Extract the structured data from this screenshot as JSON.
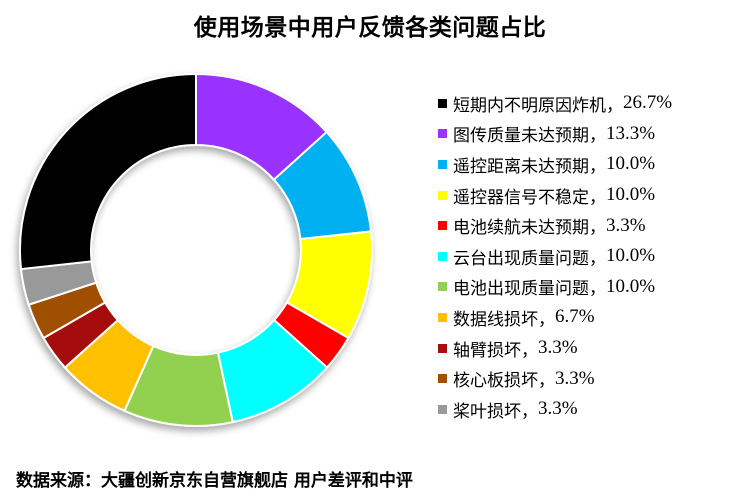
{
  "chart_data": {
    "type": "pie",
    "variant": "donut",
    "title": "使用场景中用户反馈各类问题占比",
    "start_angle": "12 o'clock, clockwise",
    "legend_position": "right",
    "slices": [
      {
        "label": "图传质量未达预期",
        "value": 13.3,
        "display": "13.3%",
        "color": "#9933FF"
      },
      {
        "label": "遥控距离未达预期",
        "value": 10.0,
        "display": "10.0%",
        "color": "#00B0F0"
      },
      {
        "label": "遥控器信号不稳定",
        "value": 10.0,
        "display": "10.0%",
        "color": "#FFFF00"
      },
      {
        "label": "电池续航未达预期",
        "value": 3.3,
        "display": "3.3%",
        "color": "#FF0000"
      },
      {
        "label": "云台出现质量问题",
        "value": 10.0,
        "display": "10.0%",
        "color": "#00FFFF"
      },
      {
        "label": "电池出现质量问题",
        "value": 10.0,
        "display": "10.0%",
        "color": "#92D050"
      },
      {
        "label": "数据线损坏",
        "value": 6.7,
        "display": "6.7%",
        "color": "#FFC000"
      },
      {
        "label": "轴臂损坏",
        "value": 3.3,
        "display": "3.3%",
        "color": "#A50F0F"
      },
      {
        "label": "核心板损坏",
        "value": 3.3,
        "display": "3.3%",
        "color": "#A05000"
      },
      {
        "label": "桨叶损坏",
        "value": 3.3,
        "display": "3.3%",
        "color": "#999999"
      },
      {
        "label": "短期内不明原因炸机",
        "value": 26.7,
        "display": "26.7%",
        "color": "#000000"
      }
    ]
  },
  "title": "使用场景中用户反馈各类问题占比",
  "legend": [
    {
      "label": "短期内不明原因炸机",
      "sep": "，",
      "value": "26.7%",
      "color": "#000000"
    },
    {
      "label": "图传质量未达预期",
      "sep": "，",
      "value": "13.3%",
      "color": "#9933FF"
    },
    {
      "label": "遥控距离未达预期",
      "sep": "，",
      "value": "10.0%",
      "color": "#00B0F0"
    },
    {
      "label": "遥控器信号不稳定",
      "sep": "，",
      "value": "10.0%",
      "color": "#FFFF00"
    },
    {
      "label": "电池续航未达预期",
      "sep": "，",
      "value": "3.3%",
      "color": "#FF0000"
    },
    {
      "label": "云台出现质量问题",
      "sep": "，",
      "value": "10.0%",
      "color": "#00FFFF"
    },
    {
      "label": "电池出现质量问题",
      "sep": "，",
      "value": "10.0%",
      "color": "#92D050"
    },
    {
      "label": "数据线损坏",
      "sep": "，",
      "value": "6.7%",
      "color": "#FFC000"
    },
    {
      "label": "轴臂损坏",
      "sep": "，",
      "value": "3.3%",
      "color": "#A50F0F"
    },
    {
      "label": "核心板损坏",
      "sep": "，",
      "value": "3.3%",
      "color": "#A05000"
    },
    {
      "label": "桨叶损坏",
      "sep": "，",
      "value": "3.3%",
      "color": "#999999"
    }
  ],
  "source": "数据来源：大疆创新京东自营旗舰店  用户差评和中评"
}
